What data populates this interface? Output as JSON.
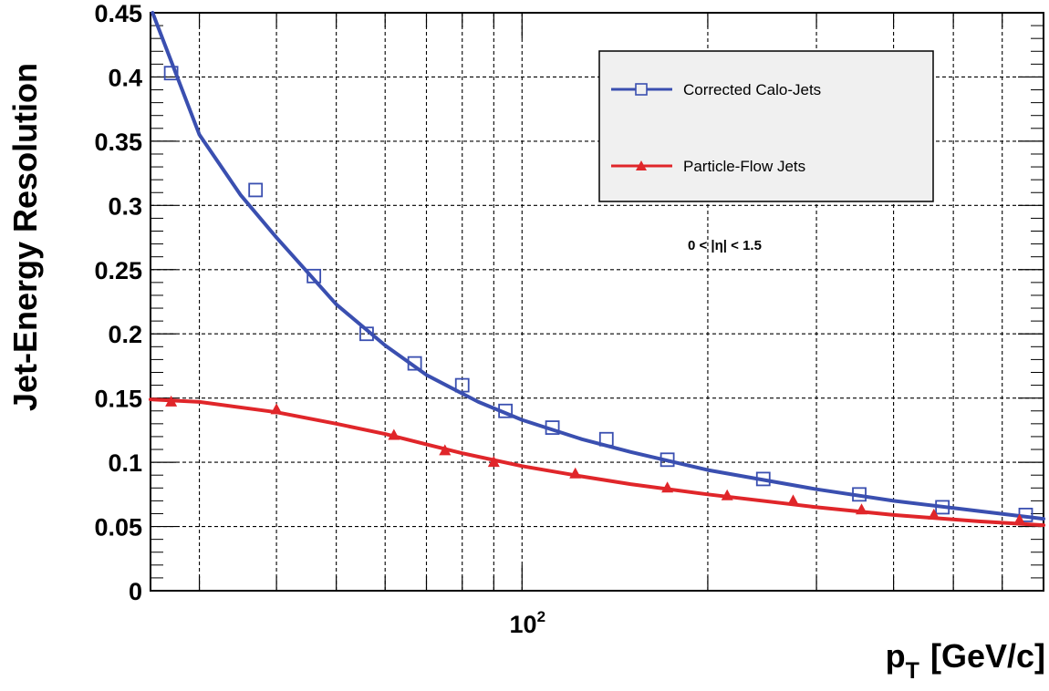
{
  "chart_data": {
    "type": "line",
    "xlabel": "p",
    "xlabel_sub": "T",
    "xlabel_unit": "[GeV/c]",
    "ylabel": "Jet-Energy Resolution",
    "x_scale": "log",
    "xlim": [
      25,
      700
    ],
    "ylim": [
      0,
      0.45
    ],
    "x_ticklabels": [
      {
        "value": 100,
        "base": "10",
        "exp": "2"
      }
    ],
    "y_ticks": [
      0,
      0.05,
      0.1,
      0.15,
      0.2,
      0.25,
      0.3,
      0.35,
      0.4,
      0.45
    ],
    "y_ticklabels": [
      "0",
      "0.05",
      "0.1",
      "0.15",
      "0.2",
      "0.25",
      "0.3",
      "0.35",
      "0.4",
      "0.45"
    ],
    "grid": true,
    "annotation": "0 < |η| < 1.5",
    "legend": {
      "position": "top-right"
    },
    "series": [
      {
        "name": "Corrected Calo-Jets",
        "color": "#3a4fb0",
        "marker": "open-square",
        "points": [
          {
            "x": 27,
            "y": 0.403
          },
          {
            "x": 37,
            "y": 0.312
          },
          {
            "x": 46,
            "y": 0.245
          },
          {
            "x": 56,
            "y": 0.2
          },
          {
            "x": 67,
            "y": 0.177
          },
          {
            "x": 80,
            "y": 0.16
          },
          {
            "x": 94,
            "y": 0.14
          },
          {
            "x": 112,
            "y": 0.127
          },
          {
            "x": 137,
            "y": 0.118
          },
          {
            "x": 172,
            "y": 0.102
          },
          {
            "x": 246,
            "y": 0.087
          },
          {
            "x": 352,
            "y": 0.075
          },
          {
            "x": 480,
            "y": 0.065
          },
          {
            "x": 655,
            "y": 0.059
          }
        ],
        "fit": [
          {
            "x": 25.2,
            "y": 0.45
          },
          {
            "x": 30,
            "y": 0.355
          },
          {
            "x": 35,
            "y": 0.308
          },
          {
            "x": 40,
            "y": 0.275
          },
          {
            "x": 50,
            "y": 0.223
          },
          {
            "x": 60,
            "y": 0.191
          },
          {
            "x": 70,
            "y": 0.168
          },
          {
            "x": 85,
            "y": 0.147
          },
          {
            "x": 100,
            "y": 0.133
          },
          {
            "x": 125,
            "y": 0.118
          },
          {
            "x": 150,
            "y": 0.108
          },
          {
            "x": 200,
            "y": 0.094
          },
          {
            "x": 300,
            "y": 0.079
          },
          {
            "x": 400,
            "y": 0.07
          },
          {
            "x": 550,
            "y": 0.062
          },
          {
            "x": 700,
            "y": 0.056
          }
        ]
      },
      {
        "name": "Particle-Flow Jets",
        "color": "#e0262a",
        "marker": "filled-triangle",
        "points": [
          {
            "x": 27,
            "y": 0.147
          },
          {
            "x": 40,
            "y": 0.141
          },
          {
            "x": 62,
            "y": 0.121
          },
          {
            "x": 75,
            "y": 0.109
          },
          {
            "x": 90,
            "y": 0.1
          },
          {
            "x": 122,
            "y": 0.091
          },
          {
            "x": 172,
            "y": 0.08
          },
          {
            "x": 215,
            "y": 0.074
          },
          {
            "x": 275,
            "y": 0.07
          },
          {
            "x": 355,
            "y": 0.063
          },
          {
            "x": 465,
            "y": 0.059
          },
          {
            "x": 640,
            "y": 0.055
          }
        ],
        "fit": [
          {
            "x": 25,
            "y": 0.149
          },
          {
            "x": 30,
            "y": 0.147
          },
          {
            "x": 40,
            "y": 0.139
          },
          {
            "x": 50,
            "y": 0.13
          },
          {
            "x": 60,
            "y": 0.122
          },
          {
            "x": 70,
            "y": 0.114
          },
          {
            "x": 80,
            "y": 0.107
          },
          {
            "x": 100,
            "y": 0.097
          },
          {
            "x": 125,
            "y": 0.089
          },
          {
            "x": 150,
            "y": 0.083
          },
          {
            "x": 200,
            "y": 0.075
          },
          {
            "x": 300,
            "y": 0.065
          },
          {
            "x": 400,
            "y": 0.059
          },
          {
            "x": 550,
            "y": 0.054
          },
          {
            "x": 700,
            "y": 0.051
          }
        ]
      }
    ]
  }
}
